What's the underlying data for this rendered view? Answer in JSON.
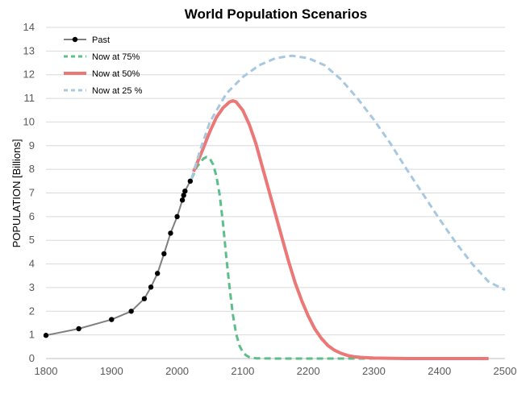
{
  "chart_data": {
    "type": "line",
    "title": "World Population Scenarios",
    "xlabel": "",
    "ylabel": "POPULATION [Billions]",
    "xlim": [
      1800,
      2500
    ],
    "ylim": [
      0,
      14
    ],
    "xticks": [
      1800,
      1900,
      2000,
      2100,
      2200,
      2300,
      2400,
      2500
    ],
    "yticks": [
      0,
      1,
      2,
      3,
      4,
      5,
      6,
      7,
      8,
      9,
      10,
      11,
      12,
      13,
      14
    ],
    "grid": "horizontal",
    "legend_position": "top-left",
    "series": [
      {
        "name": "Past",
        "color": "#7f7f7f",
        "style": "solid-markers",
        "points": [
          [
            1800,
            0.98
          ],
          [
            1850,
            1.26
          ],
          [
            1900,
            1.65
          ],
          [
            1930,
            2.0
          ],
          [
            1950,
            2.53
          ],
          [
            1960,
            3.02
          ],
          [
            1970,
            3.6
          ],
          [
            1980,
            4.43
          ],
          [
            1990,
            5.3
          ],
          [
            2000,
            6.0
          ],
          [
            2008,
            6.7
          ],
          [
            2010,
            6.9
          ],
          [
            2012,
            7.08
          ],
          [
            2020,
            7.5
          ]
        ]
      },
      {
        "name": "Now at 75%",
        "color": "#5cbf8a",
        "style": "dashed",
        "points": [
          [
            2022,
            7.6
          ],
          [
            2030,
            8.1
          ],
          [
            2040,
            8.45
          ],
          [
            2045,
            8.52
          ],
          [
            2050,
            8.45
          ],
          [
            2055,
            8.2
          ],
          [
            2060,
            7.7
          ],
          [
            2065,
            6.9
          ],
          [
            2070,
            5.7
          ],
          [
            2075,
            4.3
          ],
          [
            2080,
            3.0
          ],
          [
            2085,
            1.85
          ],
          [
            2090,
            1.05
          ],
          [
            2095,
            0.55
          ],
          [
            2100,
            0.28
          ],
          [
            2105,
            0.14
          ],
          [
            2110,
            0.06
          ],
          [
            2120,
            0.01
          ],
          [
            2150,
            0.0
          ],
          [
            2300,
            0.0
          ],
          [
            2350,
            0.0
          ]
        ]
      },
      {
        "name": "Now at 50%",
        "color": "#eb7877",
        "style": "solid",
        "points": [
          [
            2025,
            7.9
          ],
          [
            2040,
            8.9
          ],
          [
            2050,
            9.6
          ],
          [
            2060,
            10.2
          ],
          [
            2070,
            10.6
          ],
          [
            2080,
            10.85
          ],
          [
            2085,
            10.9
          ],
          [
            2090,
            10.85
          ],
          [
            2100,
            10.5
          ],
          [
            2110,
            9.9
          ],
          [
            2120,
            9.1
          ],
          [
            2130,
            8.1
          ],
          [
            2140,
            7.1
          ],
          [
            2150,
            6.1
          ],
          [
            2160,
            5.1
          ],
          [
            2170,
            4.1
          ],
          [
            2180,
            3.2
          ],
          [
            2190,
            2.45
          ],
          [
            2200,
            1.8
          ],
          [
            2210,
            1.25
          ],
          [
            2220,
            0.85
          ],
          [
            2230,
            0.55
          ],
          [
            2240,
            0.35
          ],
          [
            2250,
            0.22
          ],
          [
            2260,
            0.13
          ],
          [
            2270,
            0.08
          ],
          [
            2280,
            0.05
          ],
          [
            2300,
            0.02
          ],
          [
            2350,
            0.0
          ],
          [
            2400,
            0.0
          ],
          [
            2450,
            0.0
          ],
          [
            2475,
            0.0
          ]
        ]
      },
      {
        "name": "Now at 25 %",
        "color": "#a7c8df",
        "style": "dashed",
        "points": [
          [
            2022,
            7.6
          ],
          [
            2035,
            8.8
          ],
          [
            2050,
            10.0
          ],
          [
            2075,
            11.2
          ],
          [
            2100,
            11.9
          ],
          [
            2125,
            12.4
          ],
          [
            2150,
            12.7
          ],
          [
            2175,
            12.8
          ],
          [
            2200,
            12.7
          ],
          [
            2225,
            12.4
          ],
          [
            2250,
            11.8
          ],
          [
            2275,
            11.0
          ],
          [
            2300,
            10.1
          ],
          [
            2325,
            9.1
          ],
          [
            2350,
            8.0
          ],
          [
            2375,
            6.95
          ],
          [
            2400,
            5.9
          ],
          [
            2425,
            4.9
          ],
          [
            2450,
            4.0
          ],
          [
            2475,
            3.25
          ],
          [
            2500,
            2.9
          ]
        ]
      }
    ]
  }
}
